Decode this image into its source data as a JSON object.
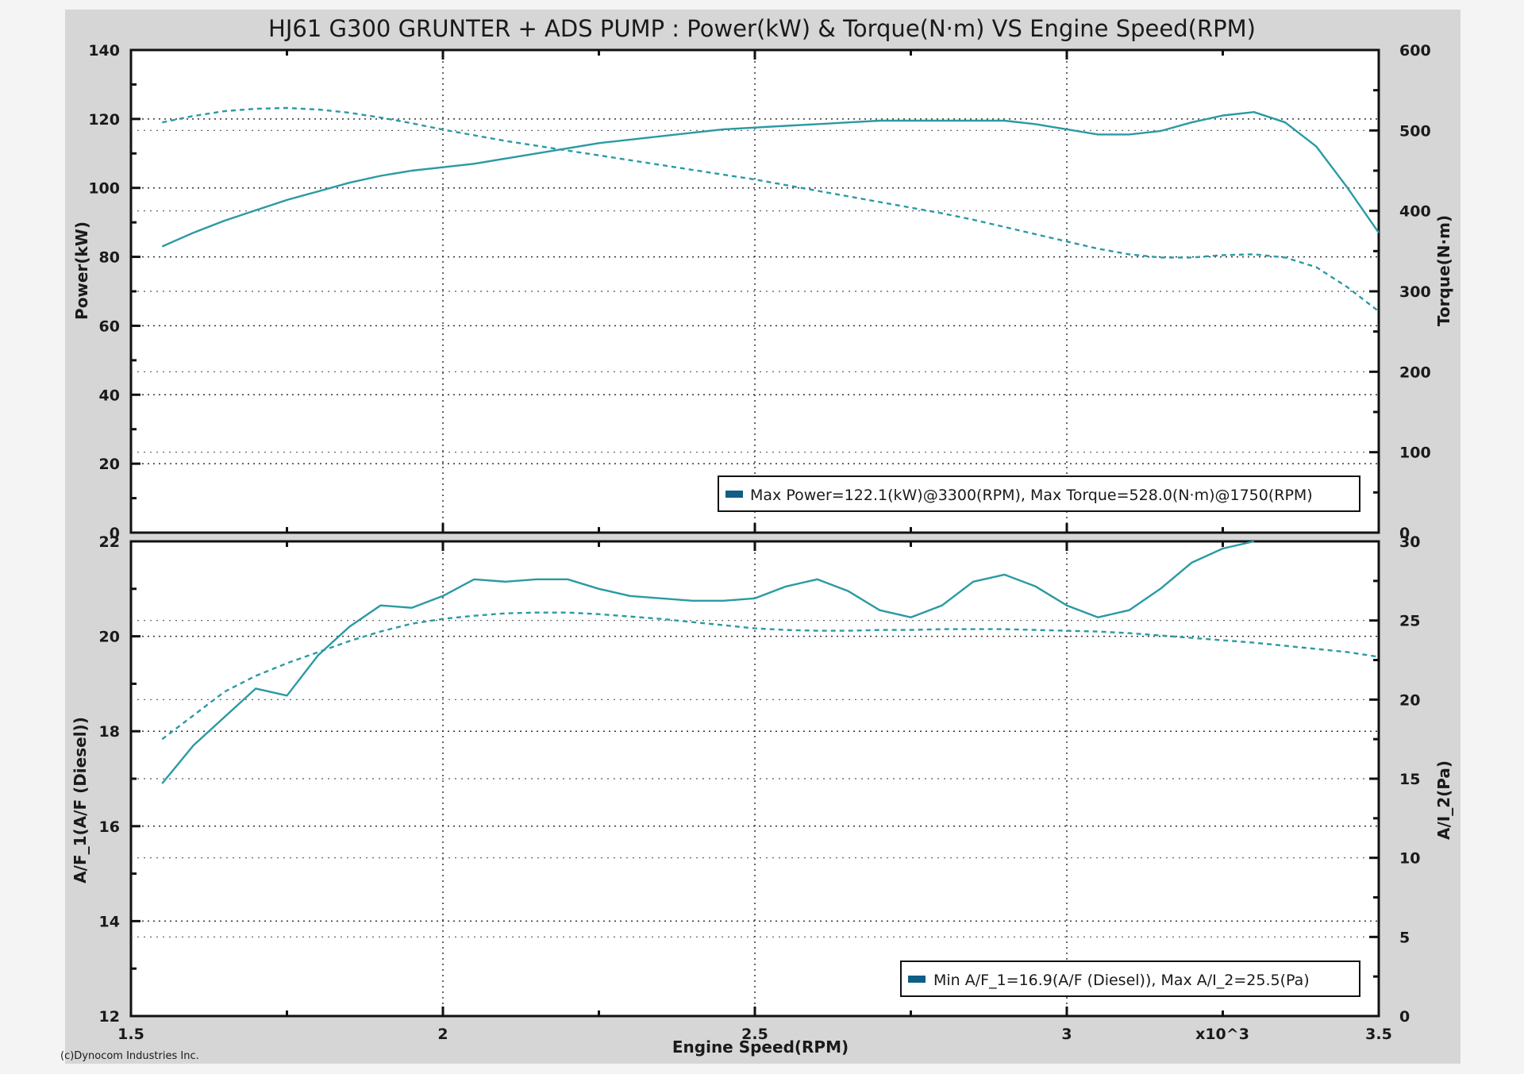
{
  "colors": {
    "background": "#d6d6d6",
    "plot": "#ffffff",
    "series": "#2a9aa3",
    "legend_swatch": "#0e5e86"
  },
  "chart_data": [
    {
      "type": "line",
      "title": "HJ61 G300 GRUNTER + ADS PUMP : Power(kW) & Torque(N·m) VS Engine Speed(RPM)",
      "ylabel": "Power(kW)",
      "y2label": "Torque(N·m)",
      "xlim": [
        1.5,
        3.5
      ],
      "ylim": [
        0,
        140
      ],
      "y2lim": [
        0,
        600
      ],
      "yticks": [
        "0",
        "20",
        "40",
        "60",
        "80",
        "100",
        "120",
        "140"
      ],
      "y2ticks": [
        "0",
        "100",
        "200",
        "300",
        "400",
        "500",
        "600"
      ],
      "grid": true,
      "legend_text": "Max Power=122.1(kW)@3300(RPM), Max Torque=528.0(N·m)@1750(RPM)",
      "legend_position": "bottom-right",
      "series": [
        {
          "name": "Power",
          "axis": "left",
          "style": "solid",
          "x": [
            1.55,
            1.6,
            1.65,
            1.7,
            1.75,
            1.8,
            1.85,
            1.9,
            1.95,
            2.0,
            2.05,
            2.1,
            2.15,
            2.2,
            2.25,
            2.3,
            2.35,
            2.4,
            2.45,
            2.5,
            2.55,
            2.6,
            2.65,
            2.7,
            2.75,
            2.8,
            2.85,
            2.9,
            2.95,
            3.0,
            3.05,
            3.1,
            3.15,
            3.2,
            3.25,
            3.3,
            3.35,
            3.4,
            3.45,
            3.5
          ],
          "y": [
            83,
            87,
            90.5,
            93.5,
            96.5,
            99,
            101.5,
            103.5,
            105,
            106,
            107,
            108.5,
            110,
            111.5,
            113,
            114,
            115,
            116,
            117,
            117.5,
            118,
            118.5,
            119,
            119.5,
            119.5,
            119.5,
            119.5,
            119.5,
            118.5,
            117,
            115.5,
            115.5,
            116.5,
            119,
            121,
            122,
            119,
            112,
            100,
            87
          ]
        },
        {
          "name": "Torque",
          "axis": "right",
          "style": "dashed",
          "x": [
            1.55,
            1.6,
            1.65,
            1.7,
            1.75,
            1.8,
            1.85,
            1.9,
            1.95,
            2.0,
            2.05,
            2.1,
            2.15,
            2.2,
            2.25,
            2.3,
            2.35,
            2.4,
            2.45,
            2.5,
            2.55,
            2.6,
            2.65,
            2.7,
            2.75,
            2.8,
            2.85,
            2.9,
            2.95,
            3.0,
            3.05,
            3.1,
            3.15,
            3.2,
            3.25,
            3.3,
            3.35,
            3.4,
            3.45,
            3.5
          ],
          "y": [
            510,
            518,
            524,
            527,
            528,
            526,
            522,
            516,
            509,
            501,
            494,
            487,
            481,
            475,
            469,
            463,
            457,
            451,
            445,
            439,
            432,
            425,
            418,
            411,
            404,
            397,
            389,
            380,
            371,
            362,
            353,
            346,
            342,
            342,
            345,
            346,
            342,
            330,
            305,
            275
          ]
        }
      ]
    },
    {
      "type": "line",
      "xlabel": "Engine Speed(RPM)",
      "ylabel": "A/F_1(A/F (Diesel))",
      "y2label": "A/I_2(Pa)",
      "xlim": [
        1.5,
        3.5
      ],
      "ylim": [
        12,
        22
      ],
      "y2lim": [
        0,
        30
      ],
      "xticks": [
        "1.5",
        "2",
        "2.5",
        "3",
        "3.5"
      ],
      "x_multiplier": "x10^3",
      "yticks": [
        "12",
        "14",
        "16",
        "18",
        "20",
        "22"
      ],
      "y2ticks": [
        "0",
        "5",
        "10",
        "15",
        "20",
        "25",
        "30"
      ],
      "grid": true,
      "legend_text": "Min A/F_1=16.9(A/F (Diesel)), Max A/I_2=25.5(Pa)",
      "legend_position": "bottom-right",
      "series": [
        {
          "name": "A/F_1",
          "axis": "left",
          "style": "solid",
          "x": [
            1.55,
            1.6,
            1.65,
            1.7,
            1.75,
            1.8,
            1.85,
            1.9,
            1.95,
            2.0,
            2.05,
            2.1,
            2.15,
            2.2,
            2.25,
            2.3,
            2.35,
            2.4,
            2.45,
            2.5,
            2.55,
            2.6,
            2.65,
            2.7,
            2.75,
            2.8,
            2.85,
            2.9,
            2.95,
            3.0,
            3.05,
            3.1,
            3.15,
            3.2,
            3.25,
            3.3
          ],
          "y": [
            16.9,
            17.7,
            18.3,
            18.9,
            18.75,
            19.6,
            20.2,
            20.65,
            20.6,
            20.85,
            21.2,
            21.15,
            21.2,
            21.2,
            21.0,
            20.85,
            20.8,
            20.75,
            20.75,
            20.8,
            21.05,
            21.2,
            20.95,
            20.55,
            20.4,
            20.65,
            21.15,
            21.3,
            21.05,
            20.65,
            20.4,
            20.55,
            21.0,
            21.55,
            21.85,
            22.0
          ]
        },
        {
          "name": "A/I_2",
          "axis": "right",
          "style": "dashed",
          "x": [
            1.55,
            1.6,
            1.65,
            1.7,
            1.75,
            1.8,
            1.85,
            1.9,
            1.95,
            2.0,
            2.05,
            2.1,
            2.15,
            2.2,
            2.25,
            2.3,
            2.35,
            2.4,
            2.45,
            2.5,
            2.55,
            2.6,
            2.65,
            2.7,
            2.75,
            2.8,
            2.85,
            2.9,
            2.95,
            3.0,
            3.05,
            3.1,
            3.15,
            3.2,
            3.25,
            3.3,
            3.35,
            3.4,
            3.45,
            3.5
          ],
          "y": [
            17.5,
            19,
            20.5,
            21.5,
            22.3,
            23,
            23.7,
            24.3,
            24.8,
            25.1,
            25.3,
            25.45,
            25.5,
            25.5,
            25.4,
            25.25,
            25.1,
            24.9,
            24.7,
            24.5,
            24.4,
            24.35,
            24.35,
            24.4,
            24.4,
            24.45,
            24.45,
            24.45,
            24.4,
            24.35,
            24.3,
            24.2,
            24.05,
            23.9,
            23.75,
            23.6,
            23.4,
            23.2,
            23.0,
            22.7
          ]
        }
      ]
    }
  ],
  "footer": {
    "credit": "(c)Dynocom Industries Inc."
  }
}
